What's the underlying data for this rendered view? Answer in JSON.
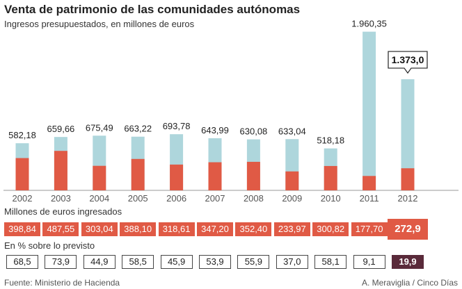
{
  "title": "Venta de patrimonio de las comunidades autónomas",
  "subtitle": "Ingresos presupuestados, en millones de euros",
  "row1_label": "Millones de euros ingresados",
  "row2_label": "En % sobre lo previsto",
  "source": "Fuente: Ministerio de Hacienda",
  "credit": "A. Meraviglia / Cinco Días",
  "colors": {
    "presupuestado": "#aed6dc",
    "ingresado": "#e05a45",
    "highlight_pct": "#5a2a3a",
    "axis": "#999999"
  },
  "chart_data": {
    "type": "bar",
    "categories": [
      "2002",
      "2003",
      "2004",
      "2005",
      "2006",
      "2007",
      "2008",
      "2009",
      "2010",
      "2011",
      "2012"
    ],
    "series": [
      {
        "values": [
          582.18,
          659.66,
          675.49,
          663.22,
          693.78,
          643.99,
          630.08,
          633.04,
          518.18,
          1960.35,
          1373.0
        ],
        "labels": [
          "582,18",
          "659,66",
          "675,49",
          "663,22",
          "693,78",
          "643,99",
          "630,08",
          "633,04",
          "518,18",
          "1.960,35",
          "1.373,0"
        ]
      },
      {
        "values": [
          398.84,
          487.55,
          303.04,
          388.1,
          318.61,
          347.2,
          352.4,
          233.97,
          300.82,
          177.7,
          272.9
        ],
        "labels": [
          "398,84",
          "487,55",
          "303,04",
          "388,10",
          "318,61",
          "347,20",
          "352,40",
          "233,97",
          "300,82",
          "177,70",
          "272,9"
        ]
      },
      {
        "values": [
          68.5,
          73.9,
          44.9,
          58.5,
          45.9,
          53.9,
          55.9,
          37.0,
          58.1,
          9.1,
          19.9
        ],
        "labels": [
          "68,5",
          "73,9",
          "44,9",
          "58,5",
          "45,9",
          "53,9",
          "55,9",
          "37,0",
          "58,1",
          "9,1",
          "19,9"
        ]
      }
    ],
    "highlight_category": "2012",
    "ylim": [
      0,
      2000
    ],
    "grid": false,
    "legend": "none"
  }
}
